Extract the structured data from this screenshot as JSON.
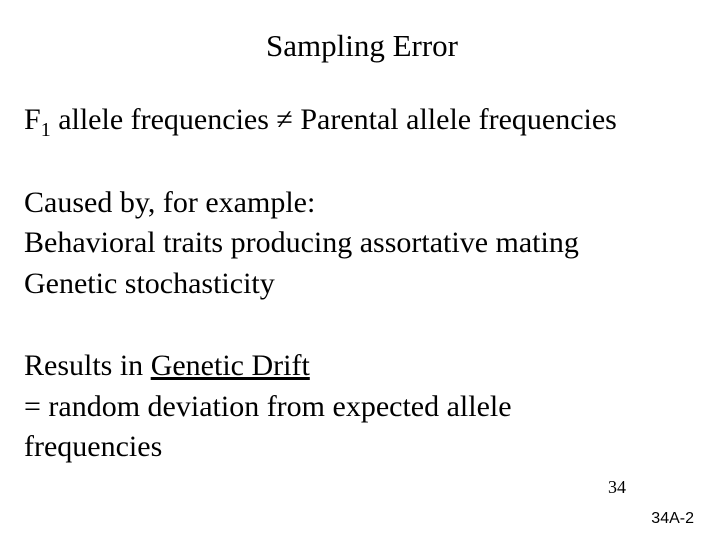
{
  "title": "Sampling Error",
  "eq": {
    "f_label": "F",
    "f_sub": "1",
    "lhs_tail": " allele frequencies ≠ Parental allele frequencies"
  },
  "caused": {
    "heading": "Caused by, for example:",
    "item1": "Behavioral traits producing assortative mating",
    "item2": "Genetic stochasticity"
  },
  "results": {
    "lead": "Results in ",
    "underlined": "Genetic Drift",
    "def_prefix": "= random deviation from expected allele",
    "def_line2": "frequencies"
  },
  "slide_number": "34",
  "footer": "34A-2",
  "colors": {
    "background": "#ffffff",
    "text": "#000000"
  },
  "typography": {
    "title_fontsize": 31,
    "body_fontsize": 30,
    "sub_fontsize": 20,
    "slide_number_fontsize": 18,
    "footer_fontsize": 16,
    "font_family": "Times New Roman"
  }
}
